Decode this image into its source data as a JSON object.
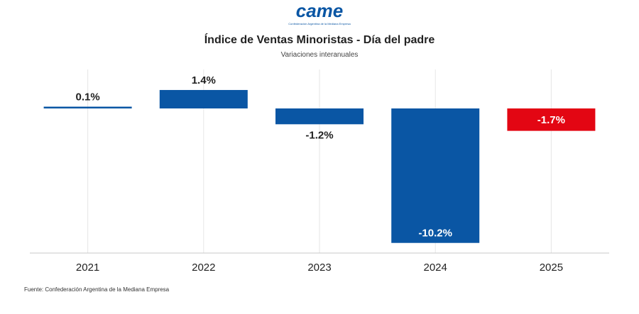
{
  "logo": {
    "word": "came",
    "tagline": "Confederación Argentina de la Mediana Empresa"
  },
  "title": "Índice de Ventas Minoristas - Día del padre",
  "subtitle": "Variaciones interanuales",
  "source": "Fuente: Confederación Argentina de la Mediana Empresa",
  "colors": {
    "primary": "#0a56a4",
    "highlight": "#e30613",
    "grid": "#e6e6e6",
    "axis": "#c8c8c8"
  },
  "chart_data": {
    "type": "bar",
    "title": "Índice de Ventas Minoristas - Día del padre",
    "subtitle": "Variaciones interanuales",
    "categories": [
      "2021",
      "2022",
      "2023",
      "2024",
      "2025"
    ],
    "values": [
      0.1,
      1.4,
      -1.2,
      -10.2,
      -1.7
    ],
    "labels": [
      "0.1%",
      "1.4%",
      "-1.2%",
      "-10.2%",
      "-1.7%"
    ],
    "bar_colors": [
      "#0a56a4",
      "#0a56a4",
      "#0a56a4",
      "#0a56a4",
      "#e30613"
    ],
    "ylim": [
      -11,
      1.6
    ],
    "grid": "vertical",
    "legend": "none"
  }
}
